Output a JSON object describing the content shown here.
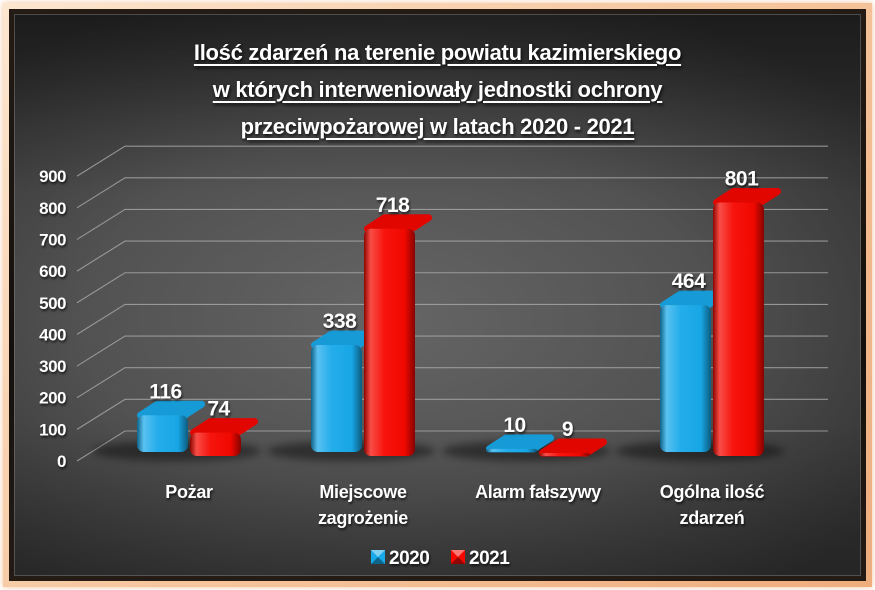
{
  "title": {
    "lines": [
      "Ilość zdarzeń na terenie powiatu kazimierskiego",
      "w których interweniowały jednostki ochrony",
      "przeciwpożarowej w latach 2020 - 2021"
    ]
  },
  "chart_data": {
    "type": "bar",
    "style": "3d-clustered-rounded",
    "title": "Ilość zdarzeń na terenie powiatu kazimierskiego w których interweniowały jednostki ochrony przeciwpożarowej w latach 2020 - 2021",
    "categories": [
      "Pożar",
      "Miejscowe zagrożenie",
      "Alarm fałszywy",
      "Ogólna ilość zdarzeń"
    ],
    "series": [
      {
        "name": "2020",
        "color": "#18A9EA",
        "values": [
          116,
          338,
          10,
          464
        ]
      },
      {
        "name": "2021",
        "color": "#F50800",
        "values": [
          74,
          718,
          9,
          801
        ]
      }
    ],
    "value_labels_shown": true,
    "xlabel": "",
    "ylabel": "",
    "ylim": [
      0,
      900
    ],
    "ytick_step": 100,
    "yticks": [
      0,
      100,
      200,
      300,
      400,
      500,
      600,
      700,
      800,
      900
    ],
    "grid": true,
    "legend_position": "bottom"
  },
  "colors": {
    "text": "#ffffff",
    "gridline": "#a9a9a9",
    "background_center": "#656565",
    "background_edge": "#303030",
    "frame_peach": "#f6c9a2",
    "frame_dark": "#1b140f",
    "outer": "#ffffff"
  }
}
